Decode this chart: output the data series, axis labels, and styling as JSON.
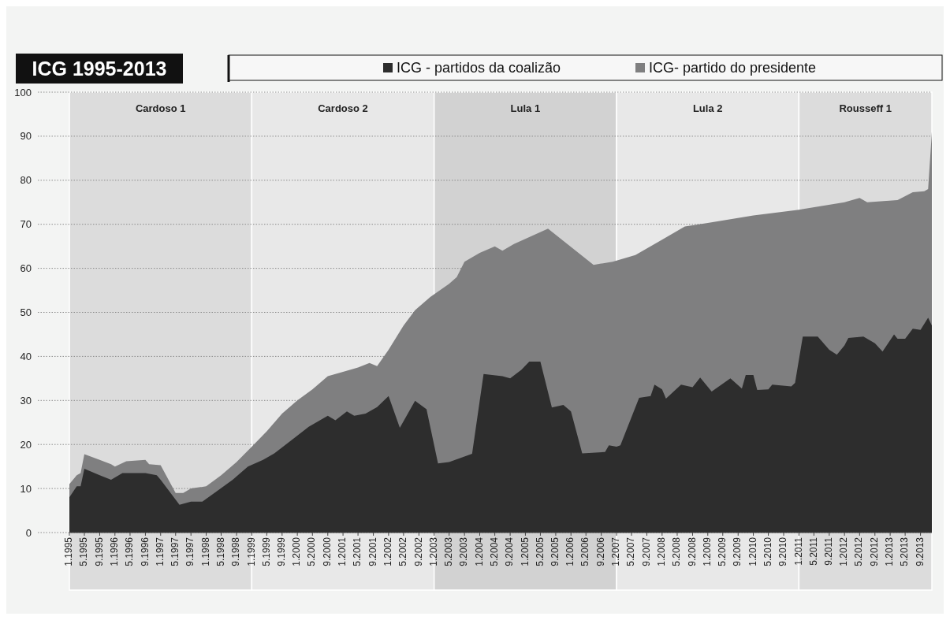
{
  "chart_data": {
    "type": "area",
    "title": "ICG 1995-2013",
    "legend": "top",
    "grid": "y",
    "ylim": [
      0,
      100
    ],
    "yticks": [
      0,
      10,
      20,
      30,
      40,
      50,
      60,
      70,
      80,
      90,
      100
    ],
    "xlim": [
      "1995-01",
      "2013-12"
    ],
    "xticks": [
      {
        "value": "1995-01",
        "label": "1.1995"
      },
      {
        "value": "1995-05",
        "label": "5.1995"
      },
      {
        "value": "1995-09",
        "label": "9.1995"
      },
      {
        "value": "1996-01",
        "label": "1.1996"
      },
      {
        "value": "1996-05",
        "label": "5.1996"
      },
      {
        "value": "1996-09",
        "label": "9.1996"
      },
      {
        "value": "1997-01",
        "label": "1.1997"
      },
      {
        "value": "1997-05",
        "label": "5.1997"
      },
      {
        "value": "1997-09",
        "label": "9.1997"
      },
      {
        "value": "1998-01",
        "label": "1.1998"
      },
      {
        "value": "1998-05",
        "label": "5.1998"
      },
      {
        "value": "1998-09",
        "label": "9.1998"
      },
      {
        "value": "1999-01",
        "label": "1.1999"
      },
      {
        "value": "1999-05",
        "label": "5.1999"
      },
      {
        "value": "1999-09",
        "label": "9.1999"
      },
      {
        "value": "2000-01",
        "label": "1.2000"
      },
      {
        "value": "2000-05",
        "label": "5.2000"
      },
      {
        "value": "2000-09",
        "label": "9.2000"
      },
      {
        "value": "2001-01",
        "label": "1.2001"
      },
      {
        "value": "2001-05",
        "label": "5.2001"
      },
      {
        "value": "2001-09",
        "label": "9.2001"
      },
      {
        "value": "2002-01",
        "label": "1.2002"
      },
      {
        "value": "2002-05",
        "label": "5.2002"
      },
      {
        "value": "2002-09",
        "label": "9.2002"
      },
      {
        "value": "2003-01",
        "label": "1.2003"
      },
      {
        "value": "2003-05",
        "label": "5.2003"
      },
      {
        "value": "2003-09",
        "label": "9.2003"
      },
      {
        "value": "2004-01",
        "label": "1.2004"
      },
      {
        "value": "2004-05",
        "label": "5.2004"
      },
      {
        "value": "2004-09",
        "label": "9.2004"
      },
      {
        "value": "2005-01",
        "label": "1.2005"
      },
      {
        "value": "2005-05",
        "label": "5.2005"
      },
      {
        "value": "2005-09",
        "label": "9.2005"
      },
      {
        "value": "2006-01",
        "label": "1.2006"
      },
      {
        "value": "2006-05",
        "label": "5.2006"
      },
      {
        "value": "2006-09",
        "label": "9.2006"
      },
      {
        "value": "2007-01",
        "label": "1.2007"
      },
      {
        "value": "2007-05",
        "label": "5.2007"
      },
      {
        "value": "2007-09",
        "label": "9.2007"
      },
      {
        "value": "2008-01",
        "label": "1.2008"
      },
      {
        "value": "2008-05",
        "label": "5.2008"
      },
      {
        "value": "2008-09",
        "label": "9.2008"
      },
      {
        "value": "2009-01",
        "label": "1.2009"
      },
      {
        "value": "2009-05",
        "label": "5.2009"
      },
      {
        "value": "2009-09",
        "label": "9.2009"
      },
      {
        "value": "2010-01",
        "label": "1.2010"
      },
      {
        "value": "2010-05",
        "label": "5.2010"
      },
      {
        "value": "2010-09",
        "label": "9.2010"
      },
      {
        "value": "2011-01",
        "label": "1.2011"
      },
      {
        "value": "2011-05",
        "label": "5.2011"
      },
      {
        "value": "2011-09",
        "label": "9.2011"
      },
      {
        "value": "2012-01",
        "label": "1.2012"
      },
      {
        "value": "2012-05",
        "label": "5.2012"
      },
      {
        "value": "2012-09",
        "label": "9.2012"
      },
      {
        "value": "2013-01",
        "label": "1.2013"
      },
      {
        "value": "2013-05",
        "label": "5.2013"
      },
      {
        "value": "2013-09",
        "label": "9.2013"
      }
    ],
    "bands": [
      {
        "axis": "x",
        "from": "1995-01",
        "to": "1999-01",
        "label": "Cardoso 1",
        "color": "#dcdcdc"
      },
      {
        "axis": "x",
        "from": "1999-01",
        "to": "2003-01",
        "label": "Cardoso 2",
        "color": "#e8e8e8"
      },
      {
        "axis": "x",
        "from": "2003-01",
        "to": "2007-01",
        "label": "Lula 1",
        "color": "#d2d2d2"
      },
      {
        "axis": "x",
        "from": "2007-01",
        "to": "2011-01",
        "label": "Lula 2",
        "color": "#e8e8e8"
      },
      {
        "axis": "x",
        "from": "2011-01",
        "to": "2013-12",
        "label": "Rousseff 1",
        "color": "#dcdcdc"
      }
    ],
    "series": [
      {
        "name": "ICG- partido do presidente",
        "color": "#7f7f80",
        "x": [
          "1995-01",
          "1995-03",
          "1995-04",
          "1995-05",
          "1995-09",
          "1995-12",
          "1996-01",
          "1996-04",
          "1996-09",
          "1996-10",
          "1997-01",
          "1997-05",
          "1997-07",
          "1997-09",
          "1998-01",
          "1998-05",
          "1998-09",
          "1999-01",
          "1999-05",
          "1999-09",
          "2000-01",
          "2000-05",
          "2000-09",
          "2001-01",
          "2001-05",
          "2001-08",
          "2001-10",
          "2002-01",
          "2002-05",
          "2002-08",
          "2002-12",
          "2003-05",
          "2003-07",
          "2003-09",
          "2004-01",
          "2004-05",
          "2004-07",
          "2004-10",
          "2005-07",
          "2006-07",
          "2006-12",
          "2007-06",
          "2008-01",
          "2008-07",
          "2009-01",
          "2010-01",
          "2011-01",
          "2012-01",
          "2012-05",
          "2012-07",
          "2013-03",
          "2013-07",
          "2013-10",
          "2013-11",
          "2013-12"
        ],
        "values": [
          11,
          13,
          13.5,
          17.8,
          16.5,
          15.5,
          15,
          16.2,
          16.5,
          15.5,
          15.3,
          9,
          9,
          10,
          10.5,
          13,
          16,
          19.5,
          23,
          27,
          30,
          32.5,
          35.5,
          36.5,
          37.5,
          38.5,
          37.8,
          41.5,
          47,
          50.5,
          53.5,
          56.5,
          58,
          61.5,
          63.5,
          65,
          64,
          65.5,
          69,
          60.8,
          61.5,
          63,
          66.5,
          69.5,
          70.3,
          72,
          73.3,
          75,
          76,
          75,
          75.5,
          77.3,
          77.5,
          78,
          91
        ]
      },
      {
        "name": "ICG - partidos da coalizão",
        "color": "#2d2d2d",
        "x": [
          "1995-01",
          "1995-03",
          "1995-04",
          "1995-05",
          "1995-09",
          "1995-12",
          "1996-03",
          "1996-09",
          "1996-12",
          "1997-01",
          "1997-06",
          "1997-09",
          "1997-12",
          "1998-04",
          "1998-08",
          "1998-12",
          "1999-04",
          "1999-07",
          "1999-10",
          "2000-01",
          "2000-04",
          "2000-09",
          "2000-11",
          "2001-02",
          "2001-04",
          "2001-07",
          "2001-10",
          "2002-01",
          "2002-04",
          "2002-08",
          "2002-11",
          "2003-02",
          "2003-05",
          "2003-11",
          "2004-02",
          "2004-07",
          "2004-09",
          "2004-12",
          "2005-02",
          "2005-05",
          "2005-08",
          "2005-11",
          "2006-01",
          "2006-04",
          "2006-10",
          "2006-11",
          "2007-01",
          "2007-02",
          "2007-07",
          "2007-10",
          "2007-11",
          "2008-01",
          "2008-02",
          "2008-06",
          "2008-09",
          "2008-11",
          "2009-02",
          "2009-07",
          "2009-10",
          "2009-11",
          "2010-01",
          "2010-02",
          "2010-05",
          "2010-06",
          "2010-11",
          "2010-12",
          "2011-02",
          "2011-06",
          "2011-09",
          "2011-11",
          "2012-01",
          "2012-02",
          "2012-06",
          "2012-09",
          "2012-11",
          "2013-02",
          "2013-03",
          "2013-05",
          "2013-07",
          "2013-09",
          "2013-11",
          "2013-12"
        ],
        "values": [
          8,
          10.5,
          10.5,
          14.5,
          13,
          12,
          13.5,
          13.5,
          13,
          12,
          6.3,
          7,
          7,
          9.5,
          12,
          15,
          16.5,
          18,
          20,
          22,
          24,
          26.5,
          25.5,
          27.5,
          26.5,
          27,
          28.5,
          31,
          23.8,
          29.9,
          28,
          15.7,
          16,
          17.9,
          36,
          35.5,
          35,
          37,
          38.8,
          38.8,
          28.4,
          29,
          27.5,
          18,
          18.3,
          19.8,
          19.5,
          19.8,
          30.6,
          31,
          33.6,
          32.5,
          30.4,
          33.6,
          33,
          35.2,
          32,
          35,
          32.7,
          35.8,
          35.8,
          32.4,
          32.5,
          33.6,
          33.2,
          34,
          44.5,
          44.5,
          41.5,
          40.4,
          42.5,
          44.2,
          44.5,
          43,
          41.1,
          45,
          44,
          44,
          46.3,
          46,
          48.8,
          47
        ]
      }
    ]
  }
}
